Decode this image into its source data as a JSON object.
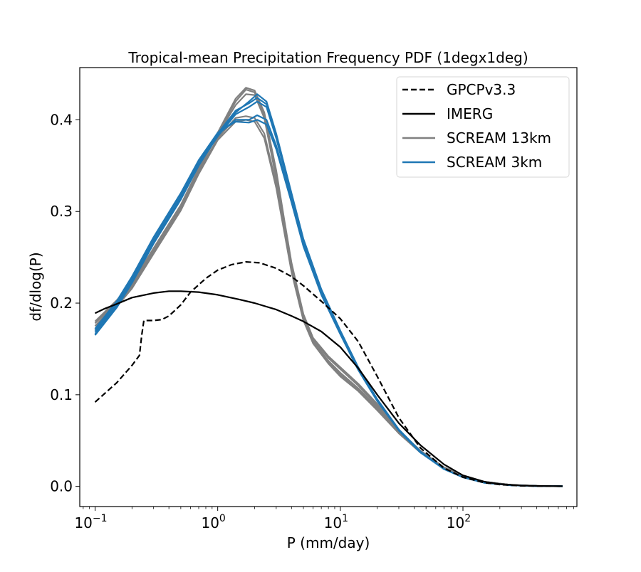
{
  "chart_data": {
    "type": "line",
    "title": "Tropical-mean Precipitation Frequency PDF (1degx1deg)",
    "xlabel": "P (mm/day)",
    "ylabel": "df/dlog(P)",
    "xscale": "log",
    "xlim": [
      0.075,
      850
    ],
    "ylim": [
      -0.022,
      0.457
    ],
    "grid": false,
    "legend_position": "top-right",
    "xticks": [
      {
        "value": 0.1,
        "base": "10",
        "exp": "−1"
      },
      {
        "value": 1,
        "base": "10",
        "exp": "0"
      },
      {
        "value": 10,
        "base": "10",
        "exp": "1"
      },
      {
        "value": 100,
        "base": "10",
        "exp": "2"
      }
    ],
    "yticks": [
      {
        "value": 0.0,
        "label": "0.0"
      },
      {
        "value": 0.1,
        "label": "0.1"
      },
      {
        "value": 0.2,
        "label": "0.2"
      },
      {
        "value": 0.3,
        "label": "0.3"
      },
      {
        "value": 0.4,
        "label": "0.4"
      }
    ],
    "legend": [
      {
        "label": "GPCPv3.3",
        "color": "#000000",
        "dash": true
      },
      {
        "label": "IMERG",
        "color": "#000000",
        "dash": false
      },
      {
        "label": "SCREAM 13km",
        "color": "#808080",
        "dash": false
      },
      {
        "label": "SCREAM 3km",
        "color": "#1f77b4",
        "dash": false
      }
    ],
    "series": [
      {
        "name": "GPCPv3.3",
        "color": "#000000",
        "dash": true,
        "x": [
          0.1,
          0.15,
          0.2,
          0.23,
          0.24,
          0.25,
          0.3,
          0.35,
          0.4,
          0.5,
          0.6,
          0.8,
          1.0,
          1.3,
          1.7,
          2.2,
          3.0,
          4.0,
          5.0,
          7.0,
          10,
          14,
          20,
          30,
          45,
          70,
          100,
          150,
          200,
          300,
          450,
          650
        ],
        "values": [
          0.092,
          0.113,
          0.132,
          0.143,
          0.165,
          0.181,
          0.181,
          0.182,
          0.186,
          0.198,
          0.212,
          0.227,
          0.236,
          0.242,
          0.245,
          0.244,
          0.238,
          0.229,
          0.219,
          0.202,
          0.183,
          0.158,
          0.12,
          0.075,
          0.042,
          0.02,
          0.01,
          0.004,
          0.002,
          0.0006,
          0.0002,
          0.0001
        ]
      },
      {
        "name": "IMERG",
        "color": "#000000",
        "dash": false,
        "x": [
          0.1,
          0.12,
          0.15,
          0.2,
          0.3,
          0.4,
          0.5,
          0.7,
          1.0,
          1.5,
          2.0,
          3.0,
          4.0,
          5.0,
          7.0,
          10,
          14,
          20,
          30,
          45,
          70,
          100,
          150,
          200,
          300,
          450,
          650
        ],
        "values": [
          0.189,
          0.194,
          0.199,
          0.206,
          0.211,
          0.213,
          0.213,
          0.212,
          0.209,
          0.204,
          0.2,
          0.193,
          0.186,
          0.18,
          0.169,
          0.152,
          0.129,
          0.1,
          0.069,
          0.045,
          0.024,
          0.012,
          0.005,
          0.0025,
          0.001,
          0.0004,
          0.0002
        ]
      },
      {
        "name": "SCREAM 13km",
        "color": "#808080",
        "dash": false,
        "members": [
          {
            "x": [
              0.1,
              0.15,
              0.2,
              0.3,
              0.5,
              0.7,
              1.0,
              1.4,
              1.7,
              2.0,
              2.4,
              3.0,
              3.5,
              4.0,
              5.0,
              6.0,
              8.0,
              10,
              14,
              20,
              30,
              45,
              70,
              100,
              150,
              250,
              400,
              650
            ],
            "values": [
              0.175,
              0.2,
              0.22,
              0.258,
              0.305,
              0.345,
              0.385,
              0.42,
              0.433,
              0.43,
              0.405,
              0.34,
              0.285,
              0.24,
              0.185,
              0.16,
              0.14,
              0.128,
              0.11,
              0.088,
              0.06,
              0.038,
              0.02,
              0.011,
              0.005,
              0.0015,
              0.0005,
              0.0002
            ]
          },
          {
            "x": [
              0.1,
              0.15,
              0.2,
              0.3,
              0.5,
              0.7,
              1.0,
              1.4,
              1.7,
              2.0,
              2.4,
              3.0,
              3.5,
              4.0,
              5.0,
              6.0,
              8.0,
              10,
              14,
              20,
              30,
              45,
              70,
              100,
              150,
              250,
              400,
              650
            ],
            "values": [
              0.18,
              0.203,
              0.222,
              0.26,
              0.307,
              0.347,
              0.384,
              0.416,
              0.428,
              0.427,
              0.402,
              0.336,
              0.282,
              0.237,
              0.183,
              0.158,
              0.137,
              0.124,
              0.107,
              0.086,
              0.059,
              0.037,
              0.02,
              0.011,
              0.005,
              0.0015,
              0.0005,
              0.0002
            ]
          },
          {
            "x": [
              0.1,
              0.15,
              0.2,
              0.3,
              0.5,
              0.7,
              1.0,
              1.4,
              1.7,
              2.0,
              2.4,
              3.0,
              3.5,
              4.0,
              5.0,
              6.0,
              8.0,
              10,
              14,
              20,
              30,
              45,
              70,
              100,
              150,
              250,
              400,
              650
            ],
            "values": [
              0.172,
              0.198,
              0.218,
              0.256,
              0.303,
              0.343,
              0.38,
              0.402,
              0.404,
              0.402,
              0.385,
              0.33,
              0.28,
              0.236,
              0.182,
              0.157,
              0.136,
              0.122,
              0.105,
              0.084,
              0.058,
              0.037,
              0.02,
              0.011,
              0.005,
              0.0015,
              0.0005,
              0.0002
            ]
          },
          {
            "x": [
              0.1,
              0.15,
              0.2,
              0.3,
              0.5,
              0.7,
              1.0,
              1.4,
              1.7,
              2.0,
              2.4,
              3.0,
              3.5,
              4.0,
              5.0,
              6.0,
              8.0,
              10,
              14,
              20,
              30,
              45,
              70,
              100,
              150,
              250,
              400,
              650
            ],
            "values": [
              0.178,
              0.201,
              0.221,
              0.259,
              0.306,
              0.346,
              0.386,
              0.423,
              0.435,
              0.432,
              0.408,
              0.345,
              0.29,
              0.244,
              0.188,
              0.162,
              0.142,
              0.13,
              0.112,
              0.09,
              0.061,
              0.039,
              0.021,
              0.012,
              0.005,
              0.0015,
              0.0005,
              0.0002
            ]
          },
          {
            "x": [
              0.1,
              0.15,
              0.2,
              0.3,
              0.5,
              0.7,
              1.0,
              1.4,
              1.7,
              2.0,
              2.4,
              3.0,
              3.5,
              4.0,
              5.0,
              6.0,
              8.0,
              10,
              14,
              20,
              30,
              45,
              70,
              100,
              150,
              250,
              400,
              650
            ],
            "values": [
              0.17,
              0.196,
              0.216,
              0.254,
              0.301,
              0.341,
              0.378,
              0.398,
              0.4,
              0.398,
              0.38,
              0.326,
              0.277,
              0.234,
              0.181,
              0.156,
              0.134,
              0.12,
              0.104,
              0.083,
              0.058,
              0.037,
              0.02,
              0.011,
              0.005,
              0.0015,
              0.0005,
              0.0002
            ]
          }
        ]
      },
      {
        "name": "SCREAM 3km",
        "color": "#1f77b4",
        "dash": false,
        "members": [
          {
            "x": [
              0.1,
              0.15,
              0.2,
              0.3,
              0.5,
              0.7,
              1.0,
              1.4,
              1.8,
              2.1,
              2.5,
              3.0,
              4.0,
              5.0,
              7.0,
              10,
              14,
              20,
              30,
              45,
              70,
              100,
              150,
              250,
              400,
              650
            ],
            "values": [
              0.165,
              0.195,
              0.222,
              0.265,
              0.313,
              0.35,
              0.383,
              0.408,
              0.42,
              0.428,
              0.42,
              0.385,
              0.32,
              0.27,
              0.215,
              0.17,
              0.13,
              0.095,
              0.062,
              0.038,
              0.019,
              0.01,
              0.004,
              0.0012,
              0.0004,
              0.0001
            ]
          },
          {
            "x": [
              0.1,
              0.15,
              0.2,
              0.3,
              0.5,
              0.7,
              1.0,
              1.4,
              1.8,
              2.1,
              2.5,
              3.0,
              4.0,
              5.0,
              7.0,
              10,
              14,
              20,
              30,
              45,
              70,
              100,
              150,
              250,
              400,
              650
            ],
            "values": [
              0.168,
              0.198,
              0.225,
              0.268,
              0.316,
              0.352,
              0.385,
              0.41,
              0.418,
              0.424,
              0.417,
              0.382,
              0.318,
              0.268,
              0.213,
              0.168,
              0.128,
              0.094,
              0.061,
              0.037,
              0.019,
              0.01,
              0.004,
              0.0012,
              0.0004,
              0.0001
            ]
          },
          {
            "x": [
              0.1,
              0.15,
              0.2,
              0.3,
              0.5,
              0.7,
              1.0,
              1.4,
              1.8,
              2.1,
              2.5,
              3.0,
              4.0,
              5.0,
              7.0,
              10,
              14,
              20,
              30,
              45,
              70,
              100,
              150,
              250,
              400,
              650
            ],
            "values": [
              0.17,
              0.2,
              0.227,
              0.271,
              0.319,
              0.355,
              0.384,
              0.4,
              0.4,
              0.405,
              0.4,
              0.372,
              0.312,
              0.264,
              0.21,
              0.167,
              0.128,
              0.094,
              0.061,
              0.037,
              0.019,
              0.01,
              0.004,
              0.0012,
              0.0004,
              0.0001
            ]
          },
          {
            "x": [
              0.1,
              0.15,
              0.2,
              0.3,
              0.5,
              0.7,
              1.0,
              1.4,
              1.8,
              2.1,
              2.5,
              3.0,
              4.0,
              5.0,
              7.0,
              10,
              14,
              20,
              30,
              45,
              70,
              100,
              150,
              250,
              400,
              650
            ],
            "values": [
              0.166,
              0.197,
              0.224,
              0.267,
              0.315,
              0.351,
              0.382,
              0.406,
              0.414,
              0.42,
              0.414,
              0.38,
              0.316,
              0.267,
              0.212,
              0.168,
              0.129,
              0.095,
              0.062,
              0.038,
              0.019,
              0.01,
              0.004,
              0.0012,
              0.0004,
              0.0001
            ]
          },
          {
            "x": [
              0.1,
              0.15,
              0.2,
              0.3,
              0.5,
              0.7,
              1.0,
              1.4,
              1.8,
              2.1,
              2.5,
              3.0,
              4.0,
              5.0,
              7.0,
              10,
              14,
              20,
              30,
              45,
              70,
              100,
              150,
              250,
              400,
              650
            ],
            "values": [
              0.172,
              0.202,
              0.229,
              0.272,
              0.32,
              0.356,
              0.386,
              0.398,
              0.397,
              0.4,
              0.395,
              0.368,
              0.31,
              0.262,
              0.209,
              0.166,
              0.127,
              0.093,
              0.061,
              0.037,
              0.019,
              0.01,
              0.004,
              0.0012,
              0.0004,
              0.0001
            ]
          }
        ]
      }
    ]
  }
}
